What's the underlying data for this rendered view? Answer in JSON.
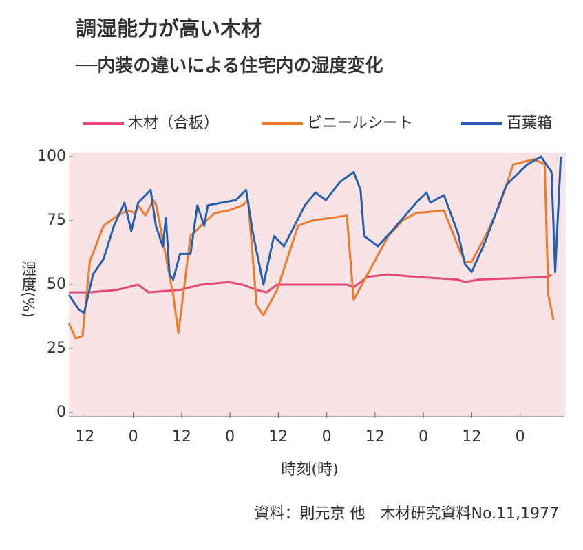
{
  "chart_data": {
    "type": "line",
    "title": "調湿能力が高い木材",
    "subtitle": "──内装の違いによる住宅内の湿度変化",
    "x_label": "時刻(時)",
    "y_label": "湿度(%)",
    "source": "資料：則元京 他　木材研究資料No.11,1977",
    "xlim": [
      8,
      131
    ],
    "xticks": [
      12,
      {
        "value": 24,
        "label": "0"
      },
      {
        "value": 36,
        "label": "12"
      },
      {
        "value": 48,
        "label": "0"
      },
      {
        "value": 60,
        "label": "12"
      },
      {
        "value": 72,
        "label": "0"
      },
      {
        "value": 84,
        "label": "12"
      },
      {
        "value": 96,
        "label": "0"
      },
      {
        "value": 108,
        "label": "12"
      },
      {
        "value": 120,
        "label": "0"
      }
    ],
    "ylim": [
      0,
      100
    ],
    "yticks": [
      0,
      25,
      50,
      75,
      100
    ],
    "series": [
      {
        "name": "木材（合板）",
        "color": "#e8457a",
        "x": [
          8,
          13.2,
          20.1,
          25.2,
          27.8,
          35.6,
          40.8,
          47.7,
          51.1,
          54.6,
          57.1,
          59.7,
          77,
          78.7,
          82.1,
          87.3,
          94.2,
          104.6,
          106.3,
          109.7,
          127,
          127.8
        ],
        "values": [
          47,
          47,
          48,
          50,
          47,
          48,
          50,
          51,
          50,
          48,
          47,
          50,
          50,
          49,
          53,
          54,
          53,
          52,
          51,
          52,
          53,
          54
        ]
      },
      {
        "name": "ビニールシート",
        "color": "#ee7a2a",
        "x": [
          8,
          9.7,
          11.4,
          13.2,
          16.6,
          20.1,
          22.7,
          24.4,
          25.2,
          27,
          29,
          29.7,
          33.9,
          35.2,
          38.2,
          40.8,
          44.2,
          47.7,
          51.1,
          52.5,
          54.6,
          56.3,
          59.7,
          64.9,
          68.3,
          77,
          78.7,
          82.1,
          87.3,
          90.8,
          94.2,
          101.1,
          104.6,
          106.3,
          108,
          111.4,
          114.9,
          118.3,
          123.5,
          126.1,
          127,
          128.3
        ],
        "values": [
          35,
          29,
          30,
          59,
          73,
          77,
          79,
          78,
          81,
          77,
          83,
          81,
          46,
          31,
          69,
          73,
          78,
          79,
          81,
          83,
          42,
          38,
          48,
          73,
          75,
          77,
          44,
          54,
          69,
          75,
          78,
          79,
          65,
          59,
          59,
          69,
          81,
          97,
          99,
          97,
          46,
          36
        ]
      },
      {
        "name": "百葉箱",
        "color": "#2560b0",
        "x": [
          8,
          10.6,
          11.8,
          14,
          16.6,
          19.2,
          21.8,
          23.5,
          25.2,
          28.3,
          29.6,
          31.3,
          32.1,
          33,
          33.9,
          35.6,
          38.2,
          39.9,
          41.6,
          42.5,
          45.9,
          49.4,
          52,
          53.7,
          56.3,
          58.9,
          61.4,
          64,
          66.6,
          69.2,
          71.8,
          75.2,
          78.7,
          80.4,
          81.3,
          84.7,
          88.2,
          94.2,
          96.8,
          97.7,
          101.1,
          104.6,
          106.3,
          108,
          111.4,
          116.6,
          121.8,
          125.2,
          127.8,
          128.7,
          130.1
        ],
        "values": [
          46,
          40,
          39,
          54,
          60,
          73,
          82,
          71,
          82,
          87,
          73,
          65,
          76,
          54,
          52,
          62,
          62,
          81,
          73,
          81,
          82,
          83,
          87,
          70,
          50,
          69,
          65,
          73,
          81,
          86,
          83,
          90,
          94,
          87,
          69,
          65,
          71,
          82,
          86,
          82,
          85,
          70,
          58,
          55,
          67,
          89,
          97,
          100,
          94,
          55,
          100
        ]
      }
    ]
  }
}
